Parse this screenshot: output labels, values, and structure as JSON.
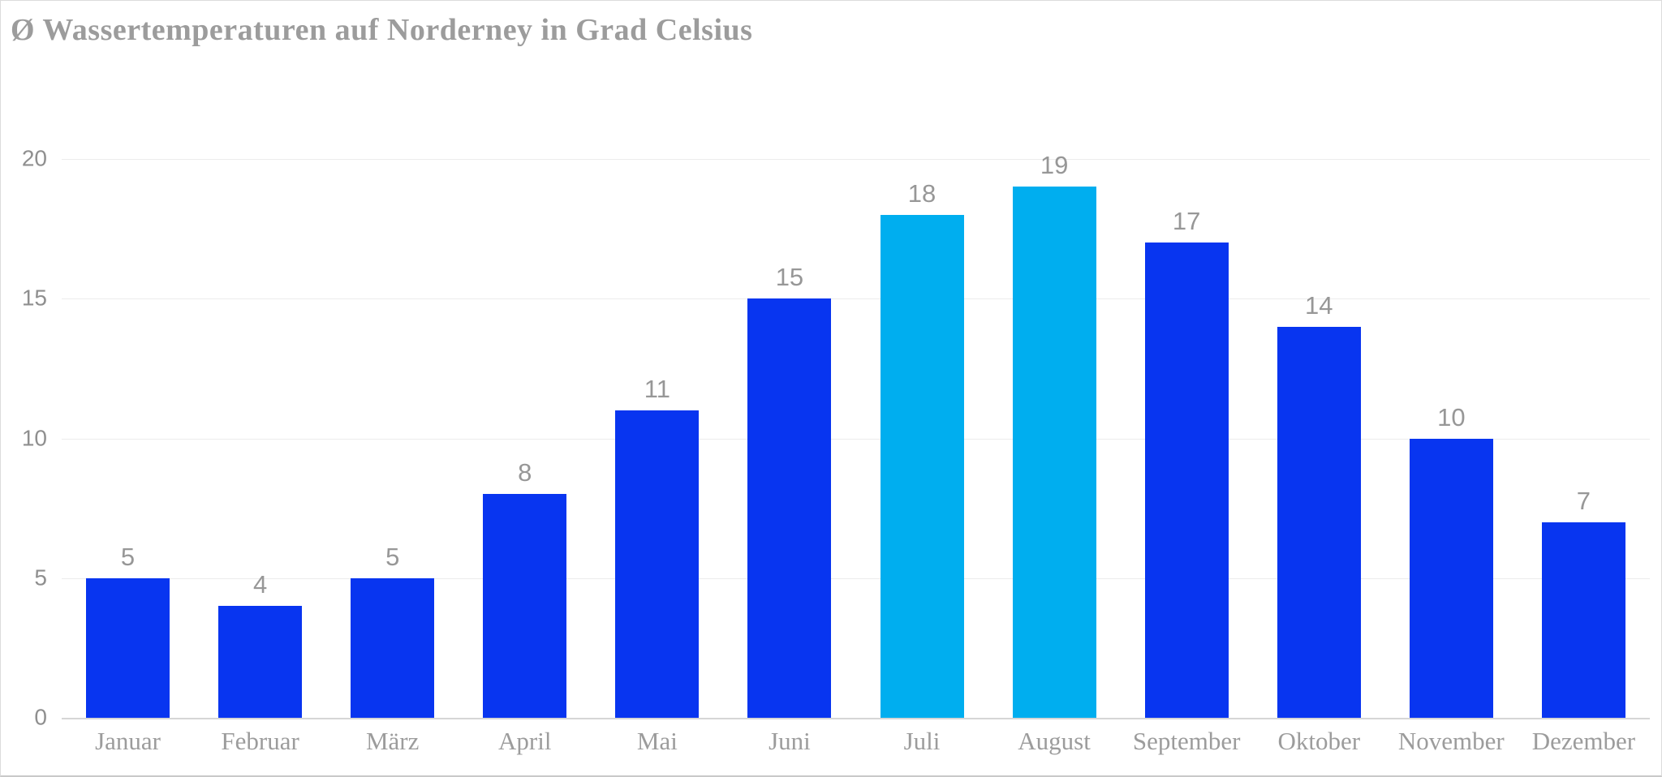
{
  "chart_data": {
    "type": "bar",
    "title": "Ø Wassertemperaturen auf Norderney in Grad Celsius",
    "categories": [
      "Januar",
      "Februar",
      "März",
      "April",
      "Mai",
      "Juni",
      "Juli",
      "August",
      "September",
      "Oktober",
      "November",
      "Dezember"
    ],
    "values": [
      5,
      4,
      5,
      8,
      11,
      15,
      18,
      19,
      17,
      14,
      10,
      7
    ],
    "bar_color": "#0835F0",
    "highlight_color": "#00AEEF",
    "highlighted_categories": [
      "Juli",
      "August"
    ],
    "data_labels": true,
    "y_ticks": [
      0,
      5,
      10,
      15,
      20
    ],
    "ylim": [
      0,
      20
    ],
    "xlabel": "",
    "ylabel": "",
    "grid": "horizontal",
    "legend": "none"
  }
}
